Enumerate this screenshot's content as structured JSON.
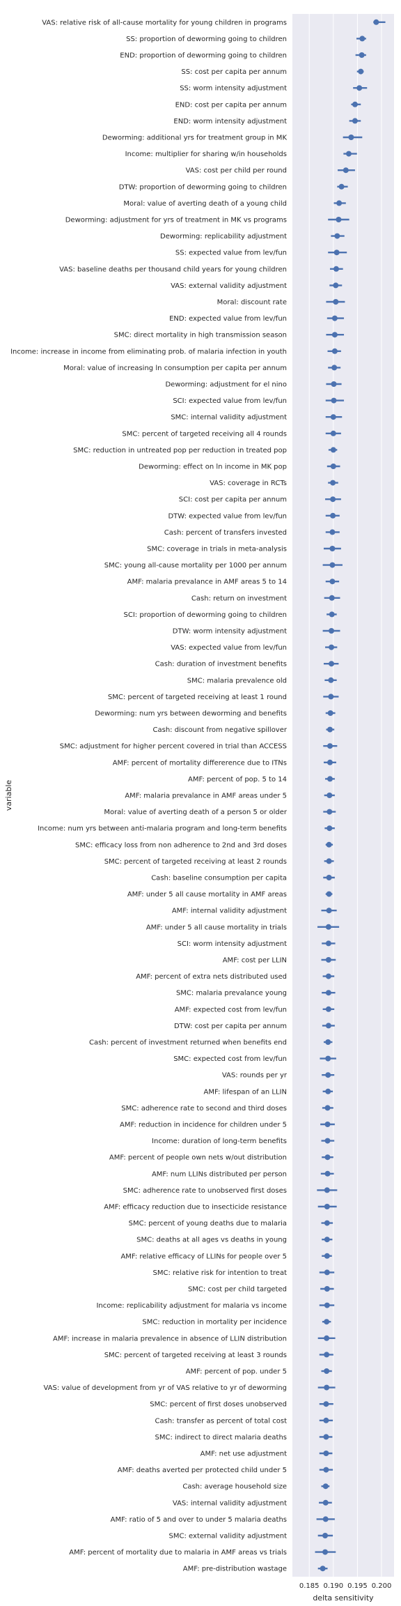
{
  "chart_data": {
    "type": "scatter",
    "xlabel": "delta sensitivity",
    "ylabel": "variable",
    "xlim": [
      0.1815,
      0.2026
    ],
    "xticks": [
      "0.185",
      "0.190",
      "0.195",
      "0.200"
    ],
    "grid": true,
    "colors": {
      "background": "#eaeaf2",
      "grid": "#ffffff",
      "point": "#4c72b0"
    },
    "points": [
      {
        "label": "VAS: relative risk of all-cause mortality for young children in programs",
        "value": 0.1989,
        "lo": 0.1983,
        "hi": 0.2008
      },
      {
        "label": "SS: proportion of deworming going to children",
        "value": 0.196,
        "lo": 0.1948,
        "hi": 0.1968
      },
      {
        "label": "END: proportion of deworming going to children",
        "value": 0.1959,
        "lo": 0.1946,
        "hi": 0.1968
      },
      {
        "label": "SS: cost per capita per annum",
        "value": 0.1957,
        "lo": 0.1949,
        "hi": 0.1963
      },
      {
        "label": "SS: worm intensity adjustment",
        "value": 0.1954,
        "lo": 0.1941,
        "hi": 0.197
      },
      {
        "label": "END: cost per capita per annum",
        "value": 0.1945,
        "lo": 0.1937,
        "hi": 0.1957
      },
      {
        "label": "END: worm intensity adjustment",
        "value": 0.1945,
        "lo": 0.1933,
        "hi": 0.1957
      },
      {
        "label": "Deworming: additional yrs for treatment group in MK",
        "value": 0.1937,
        "lo": 0.192,
        "hi": 0.196
      },
      {
        "label": "Income: multiplier for sharing w/in households",
        "value": 0.1932,
        "lo": 0.1921,
        "hi": 0.1949
      },
      {
        "label": "VAS: cost per child per round",
        "value": 0.1926,
        "lo": 0.1909,
        "hi": 0.1945
      },
      {
        "label": "DTW: proportion of deworming going to children",
        "value": 0.1917,
        "lo": 0.1908,
        "hi": 0.193
      },
      {
        "label": "Moral: value of averting death of a young child",
        "value": 0.1912,
        "lo": 0.1901,
        "hi": 0.1926
      },
      {
        "label": "Deworming: adjustment for yrs of treatment in MK vs programs",
        "value": 0.1911,
        "lo": 0.1889,
        "hi": 0.1933
      },
      {
        "label": "Deworming: replicability adjustment",
        "value": 0.1908,
        "lo": 0.1895,
        "hi": 0.1923
      },
      {
        "label": "SS: expected value from lev/fun",
        "value": 0.1907,
        "lo": 0.1889,
        "hi": 0.1928
      },
      {
        "label": "VAS: baseline deaths per thousand child years for young children",
        "value": 0.1906,
        "lo": 0.1893,
        "hi": 0.192
      },
      {
        "label": "VAS: external validity adjustment",
        "value": 0.1905,
        "lo": 0.1892,
        "hi": 0.1918
      },
      {
        "label": "Moral: discount rate",
        "value": 0.1905,
        "lo": 0.1885,
        "hi": 0.1924
      },
      {
        "label": "END: expected value from lev/fun",
        "value": 0.1903,
        "lo": 0.1887,
        "hi": 0.1922
      },
      {
        "label": "SMC: direct mortality in high transmission season",
        "value": 0.1903,
        "lo": 0.1885,
        "hi": 0.1922
      },
      {
        "label": "Income: increase in income from eliminating prob. of malaria infection in youth",
        "value": 0.1903,
        "lo": 0.1888,
        "hi": 0.1916
      },
      {
        "label": "Moral: value of increasing ln consumption per capita per annum",
        "value": 0.1902,
        "lo": 0.1889,
        "hi": 0.1915
      },
      {
        "label": "Deworming: adjustment for el nino",
        "value": 0.1901,
        "lo": 0.1885,
        "hi": 0.1917
      },
      {
        "label": "SCI: expected value from lev/fun",
        "value": 0.1901,
        "lo": 0.1884,
        "hi": 0.1922
      },
      {
        "label": "SMC: internal validity adjustment",
        "value": 0.19,
        "lo": 0.1884,
        "hi": 0.1918
      },
      {
        "label": "SMC: percent of targeted receiving all 4 rounds",
        "value": 0.19,
        "lo": 0.1884,
        "hi": 0.1916
      },
      {
        "label": "SMC: reduction in untreated pop per reduction in treated pop",
        "value": 0.19,
        "lo": 0.189,
        "hi": 0.1908
      },
      {
        "label": "Deworming: effect on ln income in MK pop",
        "value": 0.19,
        "lo": 0.1887,
        "hi": 0.1914
      },
      {
        "label": "VAS: coverage in RCTs",
        "value": 0.1899,
        "lo": 0.1889,
        "hi": 0.191
      },
      {
        "label": "SCI: cost per capita per annum",
        "value": 0.1899,
        "lo": 0.1883,
        "hi": 0.1916
      },
      {
        "label": "DTW: expected value from lev/fun",
        "value": 0.1899,
        "lo": 0.1884,
        "hi": 0.1913
      },
      {
        "label": "Cash: percent of transfers invested",
        "value": 0.1898,
        "lo": 0.1884,
        "hi": 0.1913
      },
      {
        "label": "SMC: coverage in trials in meta-analysis",
        "value": 0.1898,
        "lo": 0.188,
        "hi": 0.1916
      },
      {
        "label": "SMC: young all-cause mortality per 1000 per annum",
        "value": 0.1898,
        "lo": 0.1878,
        "hi": 0.1919
      },
      {
        "label": "AMF: malaria prevalance in AMF areas 5 to 14",
        "value": 0.1898,
        "lo": 0.1884,
        "hi": 0.1912
      },
      {
        "label": "Cash: return on investment",
        "value": 0.1897,
        "lo": 0.1881,
        "hi": 0.1914
      },
      {
        "label": "SCI: proportion of deworming going to children",
        "value": 0.1897,
        "lo": 0.1886,
        "hi": 0.1907
      },
      {
        "label": "DTW: worm intensity adjustment",
        "value": 0.1896,
        "lo": 0.1878,
        "hi": 0.1914
      },
      {
        "label": "VAS: expected value from lev/fun",
        "value": 0.1896,
        "lo": 0.1883,
        "hi": 0.1908
      },
      {
        "label": "Cash: duration of investment benefits",
        "value": 0.1896,
        "lo": 0.188,
        "hi": 0.1911
      },
      {
        "label": "SMC: malaria prevalence old",
        "value": 0.1895,
        "lo": 0.1882,
        "hi": 0.1907
      },
      {
        "label": "SMC: percent of targeted receiving at least 1 round",
        "value": 0.1895,
        "lo": 0.1879,
        "hi": 0.1911
      },
      {
        "label": "Deworming: num yrs between deworming and benefits",
        "value": 0.1894,
        "lo": 0.1884,
        "hi": 0.1904
      },
      {
        "label": "Cash: discount from negative spillover",
        "value": 0.1893,
        "lo": 0.1885,
        "hi": 0.1902
      },
      {
        "label": "SMC: adjustment for higher percent covered in trial than ACCESS",
        "value": 0.1893,
        "lo": 0.1879,
        "hi": 0.1908
      },
      {
        "label": "AMF: percent of mortality differerence due to ITNs",
        "value": 0.1893,
        "lo": 0.188,
        "hi": 0.1906
      },
      {
        "label": "AMF: percent of pop. 5 to 14",
        "value": 0.1893,
        "lo": 0.1883,
        "hi": 0.1903
      },
      {
        "label": "AMF: malaria prevalance in AMF areas under 5",
        "value": 0.1892,
        "lo": 0.1881,
        "hi": 0.1903
      },
      {
        "label": "Moral: value of averting death of a person 5 or older",
        "value": 0.1892,
        "lo": 0.1879,
        "hi": 0.1905
      },
      {
        "label": "Income: num yrs between anti-malaria program and long-term benefits",
        "value": 0.1892,
        "lo": 0.1882,
        "hi": 0.1903
      },
      {
        "label": "SMC: efficacy loss from non adherence to 2nd and 3rd doses",
        "value": 0.1891,
        "lo": 0.1884,
        "hi": 0.1899
      },
      {
        "label": "SMC: percent of targeted receiving at least 2 rounds",
        "value": 0.1891,
        "lo": 0.1881,
        "hi": 0.1901
      },
      {
        "label": "Cash: baseline consumption per capita",
        "value": 0.1891,
        "lo": 0.1879,
        "hi": 0.1903
      },
      {
        "label": "AMF: under 5 all cause mortality in AMF areas",
        "value": 0.1891,
        "lo": 0.1884,
        "hi": 0.1898
      },
      {
        "label": "AMF: internal validity adjustment",
        "value": 0.1891,
        "lo": 0.1875,
        "hi": 0.1907
      },
      {
        "label": "AMF: under 5 all cause mortality in trials",
        "value": 0.189,
        "lo": 0.1867,
        "hi": 0.1912
      },
      {
        "label": "SCI: worm intensity adjustment",
        "value": 0.189,
        "lo": 0.1876,
        "hi": 0.1904
      },
      {
        "label": "AMF: cost per LLIN",
        "value": 0.189,
        "lo": 0.1875,
        "hi": 0.1905
      },
      {
        "label": "AMF: percent of extra nets distributed used",
        "value": 0.189,
        "lo": 0.1878,
        "hi": 0.1902
      },
      {
        "label": "SMC: malaria prevalance young",
        "value": 0.189,
        "lo": 0.1876,
        "hi": 0.1904
      },
      {
        "label": "AMF: expected cost from lev/fun",
        "value": 0.189,
        "lo": 0.1878,
        "hi": 0.1902
      },
      {
        "label": "DTW: cost per capita per annum",
        "value": 0.189,
        "lo": 0.1877,
        "hi": 0.1903
      },
      {
        "label": "Cash: percent of investment returned when benefits end",
        "value": 0.1889,
        "lo": 0.188,
        "hi": 0.1898
      },
      {
        "label": "SMC: expected cost from lev/fun",
        "value": 0.1889,
        "lo": 0.1872,
        "hi": 0.1906
      },
      {
        "label": "VAS: rounds per yr",
        "value": 0.1889,
        "lo": 0.1876,
        "hi": 0.1902
      },
      {
        "label": "AMF: lifespan of an LLIN",
        "value": 0.1889,
        "lo": 0.1878,
        "hi": 0.1899
      },
      {
        "label": "SMC: adherence rate to second and third doses",
        "value": 0.1888,
        "lo": 0.1877,
        "hi": 0.19
      },
      {
        "label": "AMF: reduction in incidence for children under 5",
        "value": 0.1888,
        "lo": 0.1873,
        "hi": 0.1903
      },
      {
        "label": "Income: duration of long-term benefits",
        "value": 0.1888,
        "lo": 0.1875,
        "hi": 0.1902
      },
      {
        "label": "AMF: percent of people own nets w/out distribution",
        "value": 0.1888,
        "lo": 0.1876,
        "hi": 0.19
      },
      {
        "label": "AMF: num LLINs distributed per person",
        "value": 0.1888,
        "lo": 0.1874,
        "hi": 0.1901
      },
      {
        "label": "SMC: adherence rate to unobserved first doses",
        "value": 0.1887,
        "lo": 0.1866,
        "hi": 0.1908
      },
      {
        "label": "AMF: efficacy reduction due to insecticide resistance",
        "value": 0.1887,
        "lo": 0.1868,
        "hi": 0.1907
      },
      {
        "label": "SMC: percent of young deaths due to malaria",
        "value": 0.1887,
        "lo": 0.1875,
        "hi": 0.1899
      },
      {
        "label": "SMC: deaths at all ages vs deaths in young",
        "value": 0.1887,
        "lo": 0.1876,
        "hi": 0.1898
      },
      {
        "label": "AMF: relative efficacy of LLINs for people over 5",
        "value": 0.1887,
        "lo": 0.1876,
        "hi": 0.1897
      },
      {
        "label": "SMC: relative risk for intention to treat",
        "value": 0.1887,
        "lo": 0.1871,
        "hi": 0.1902
      },
      {
        "label": "SMC: cost per child targeted",
        "value": 0.1887,
        "lo": 0.1873,
        "hi": 0.1901
      },
      {
        "label": "Income: replicability adjustment for malaria vs income",
        "value": 0.1887,
        "lo": 0.1871,
        "hi": 0.1902
      },
      {
        "label": "SMC: reduction in mortality per incidence",
        "value": 0.1886,
        "lo": 0.1877,
        "hi": 0.1895
      },
      {
        "label": "AMF: increase in malaria prevalence in absence of LLIN distribution",
        "value": 0.1886,
        "lo": 0.1868,
        "hi": 0.1904
      },
      {
        "label": "SMC: percent of targeted receiving at least 3 rounds",
        "value": 0.1886,
        "lo": 0.1871,
        "hi": 0.19
      },
      {
        "label": "AMF: percent of pop. under 5",
        "value": 0.1886,
        "lo": 0.1875,
        "hi": 0.1897
      },
      {
        "label": "VAS: value of development from yr of VAS relative to yr of deworming",
        "value": 0.1886,
        "lo": 0.1868,
        "hi": 0.1904
      },
      {
        "label": "SMC: percent of first doses unobserved",
        "value": 0.1885,
        "lo": 0.1871,
        "hi": 0.19
      },
      {
        "label": "Cash: transfer as percent of total cost",
        "value": 0.1885,
        "lo": 0.1871,
        "hi": 0.1899
      },
      {
        "label": "SMC: indirect to direct malaria deaths",
        "value": 0.1885,
        "lo": 0.1871,
        "hi": 0.1898
      },
      {
        "label": "AMF: net use adjustment",
        "value": 0.1885,
        "lo": 0.1871,
        "hi": 0.1898
      },
      {
        "label": "AMF: deaths averted per protected child under 5",
        "value": 0.1885,
        "lo": 0.1871,
        "hi": 0.1899
      },
      {
        "label": "Cash: average household size",
        "value": 0.1884,
        "lo": 0.1875,
        "hi": 0.1892
      },
      {
        "label": "VAS: internal validity adjustment",
        "value": 0.1884,
        "lo": 0.187,
        "hi": 0.1897
      },
      {
        "label": "AMF: ratio of 5 and over to under 5 malaria deaths",
        "value": 0.1884,
        "lo": 0.1865,
        "hi": 0.1903
      },
      {
        "label": "SMC: external validity adjustment",
        "value": 0.1883,
        "lo": 0.1868,
        "hi": 0.1899
      },
      {
        "label": "AMF: percent of mortality due to malaria in AMF areas vs trials",
        "value": 0.1883,
        "lo": 0.1862,
        "hi": 0.1905
      },
      {
        "label": "AMF: pre-distribution wastage",
        "value": 0.1878,
        "lo": 0.1868,
        "hi": 0.1888
      }
    ]
  }
}
